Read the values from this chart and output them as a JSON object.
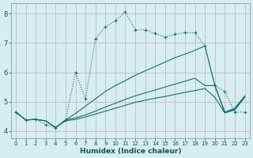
{
  "xlabel": "Humidex (Indice chaleur)",
  "background_color": "#d6eeee",
  "grid_color": "#b8d8d8",
  "line_color": "#1a6e6e",
  "xlim": [
    -0.5,
    23.5
  ],
  "ylim": [
    3.75,
    8.35
  ],
  "xticks": [
    0,
    1,
    2,
    3,
    4,
    5,
    6,
    7,
    8,
    9,
    10,
    11,
    12,
    13,
    14,
    15,
    16,
    17,
    18,
    19,
    20,
    21,
    22,
    23
  ],
  "yticks": [
    4,
    5,
    6,
    7,
    8
  ],
  "series": [
    {
      "x": [
        0,
        1,
        2,
        3,
        4,
        5,
        6,
        7,
        8,
        9,
        10,
        11,
        12,
        13,
        14,
        15,
        16,
        17,
        18,
        19,
        20,
        21,
        22,
        23
      ],
      "y": [
        4.65,
        4.38,
        4.4,
        4.35,
        4.12,
        4.35,
        4.4,
        4.48,
        4.58,
        4.68,
        4.78,
        4.88,
        4.98,
        5.05,
        5.12,
        5.18,
        5.25,
        5.32,
        5.38,
        5.45,
        5.15,
        4.62,
        4.72,
        5.15
      ],
      "marker": null,
      "linestyle": "-"
    },
    {
      "x": [
        0,
        1,
        2,
        3,
        4,
        5,
        6,
        7,
        8,
        9,
        10,
        11,
        12,
        13,
        14,
        15,
        16,
        17,
        18,
        19,
        20,
        21,
        22,
        23
      ],
      "y": [
        4.65,
        4.38,
        4.4,
        4.35,
        4.12,
        4.38,
        4.45,
        4.55,
        4.68,
        4.82,
        4.95,
        5.08,
        5.2,
        5.3,
        5.4,
        5.5,
        5.6,
        5.7,
        5.8,
        5.55,
        5.55,
        4.62,
        4.75,
        5.18
      ],
      "marker": null,
      "linestyle": "-"
    },
    {
      "x": [
        0,
        1,
        2,
        3,
        4,
        5,
        6,
        7,
        8,
        9,
        10,
        11,
        12,
        13,
        14,
        15,
        16,
        17,
        18,
        19,
        20,
        21,
        22,
        23
      ],
      "y": [
        4.65,
        4.38,
        4.4,
        4.35,
        4.12,
        4.38,
        4.6,
        4.85,
        5.1,
        5.35,
        5.55,
        5.72,
        5.9,
        6.05,
        6.2,
        6.35,
        6.5,
        6.62,
        6.75,
        6.9,
        5.55,
        4.65,
        4.78,
        5.2
      ],
      "marker": null,
      "linestyle": "-"
    },
    {
      "x": [
        0,
        1,
        2,
        3,
        4,
        5,
        6,
        7,
        8,
        9,
        10,
        11,
        12,
        13,
        14,
        15,
        16,
        17,
        18,
        19,
        20,
        21,
        22,
        23
      ],
      "y": [
        4.65,
        4.38,
        4.4,
        4.22,
        4.12,
        4.38,
        6.0,
        5.1,
        7.15,
        7.55,
        7.75,
        8.05,
        7.45,
        7.45,
        7.32,
        7.2,
        7.3,
        7.35,
        7.35,
        6.9,
        5.55,
        5.35,
        4.65,
        4.65
      ],
      "marker": "+",
      "linestyle": ":"
    }
  ]
}
